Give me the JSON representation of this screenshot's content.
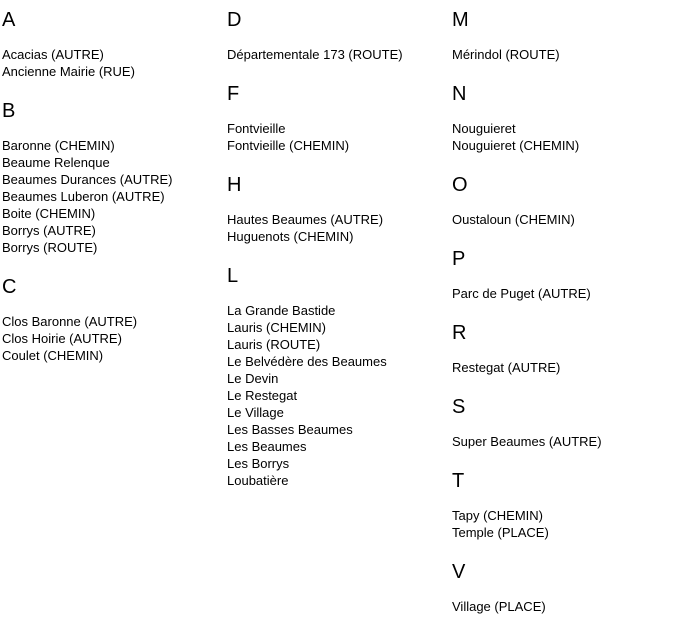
{
  "page": {
    "background_color": "#ffffff",
    "text_color": "#000000"
  },
  "index": {
    "columns": [
      {
        "sections": [
          {
            "letter": "A",
            "entries": [
              "Acacias (AUTRE)",
              "Ancienne Mairie (RUE)"
            ]
          },
          {
            "letter": "B",
            "entries": [
              "Baronne (CHEMIN)",
              "Beaume Relenque",
              "Beaumes Durances (AUTRE)",
              "Beaumes Luberon (AUTRE)",
              "Boite (CHEMIN)",
              "Borrys (AUTRE)",
              "Borrys (ROUTE)"
            ]
          },
          {
            "letter": "C",
            "entries": [
              "Clos Baronne (AUTRE)",
              "Clos Hoirie (AUTRE)",
              "Coulet (CHEMIN)"
            ]
          }
        ]
      },
      {
        "sections": [
          {
            "letter": "D",
            "entries": [
              "Départementale 173 (ROUTE)"
            ]
          },
          {
            "letter": "F",
            "entries": [
              "Fontvieille",
              "Fontvieille (CHEMIN)"
            ]
          },
          {
            "letter": "H",
            "entries": [
              "Hautes Beaumes (AUTRE)",
              "Huguenots (CHEMIN)"
            ]
          },
          {
            "letter": "L",
            "entries": [
              "La Grande Bastide",
              "Lauris (CHEMIN)",
              "Lauris (ROUTE)",
              "Le Belvédère des Beaumes",
              "Le Devin",
              "Le Restegat",
              "Le Village",
              "Les Basses Beaumes",
              "Les Beaumes",
              "Les Borrys",
              "Loubatière"
            ]
          }
        ]
      },
      {
        "sections": [
          {
            "letter": "M",
            "entries": [
              "Mérindol (ROUTE)"
            ]
          },
          {
            "letter": "N",
            "entries": [
              "Nouguieret",
              "Nouguieret (CHEMIN)"
            ]
          },
          {
            "letter": "O",
            "entries": [
              "Oustaloun (CHEMIN)"
            ]
          },
          {
            "letter": "P",
            "entries": [
              "Parc de Puget (AUTRE)"
            ]
          },
          {
            "letter": "R",
            "entries": [
              "Restegat (AUTRE)"
            ]
          },
          {
            "letter": "S",
            "entries": [
              "Super Beaumes (AUTRE)"
            ]
          },
          {
            "letter": "T",
            "entries": [
              "Tapy (CHEMIN)",
              "Temple (PLACE)"
            ]
          },
          {
            "letter": "V",
            "entries": [
              "Village (PLACE)"
            ]
          }
        ]
      }
    ]
  }
}
